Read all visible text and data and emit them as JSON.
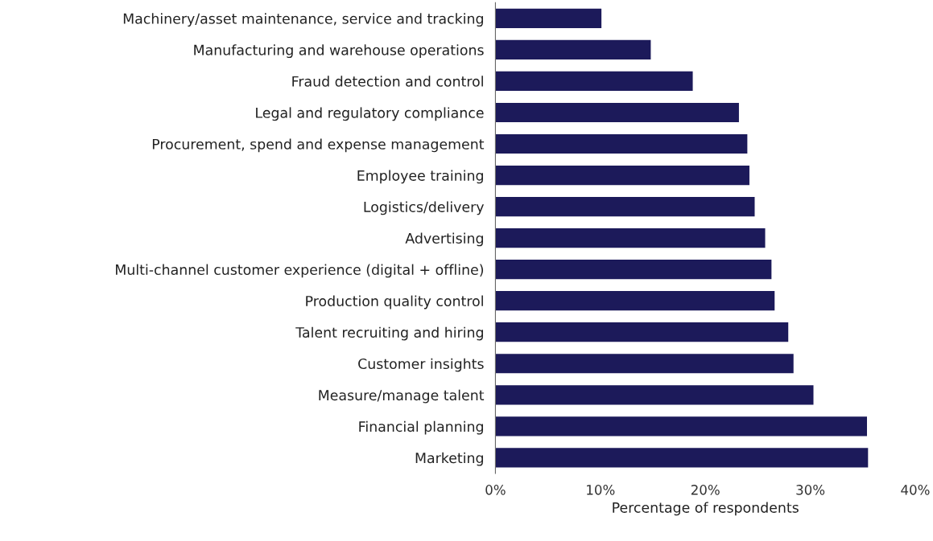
{
  "chart_data": {
    "type": "bar",
    "orientation": "horizontal",
    "xlabel": "Percentage of respondents",
    "categories": [
      "Machinery/asset maintenance, service and tracking",
      "Manufacturing and warehouse operations",
      "Fraud detection and control",
      "Legal and regulatory compliance",
      "Procurement, spend and expense management",
      "Employee training",
      "Logistics/delivery",
      "Advertising",
      "Multi-channel customer experience (digital + offline)",
      "Production quality control",
      "Talent recruiting and hiring",
      "Customer insights",
      "Measure/manage talent",
      "Financial planning",
      "Marketing"
    ],
    "values": [
      10.1,
      14.8,
      18.8,
      23.2,
      24.0,
      24.2,
      24.7,
      25.7,
      26.3,
      26.6,
      27.9,
      28.4,
      30.3,
      35.4,
      35.5
    ],
    "color": "#1c1a5a",
    "xlim": [
      0,
      40
    ],
    "xticks": [
      {
        "value": 0,
        "label": "0%"
      },
      {
        "value": 10,
        "label": "10%"
      },
      {
        "value": 20,
        "label": "20%"
      },
      {
        "value": 30,
        "label": "30%"
      },
      {
        "value": 40,
        "label": "40%"
      }
    ],
    "grid": false,
    "legend": false
  }
}
